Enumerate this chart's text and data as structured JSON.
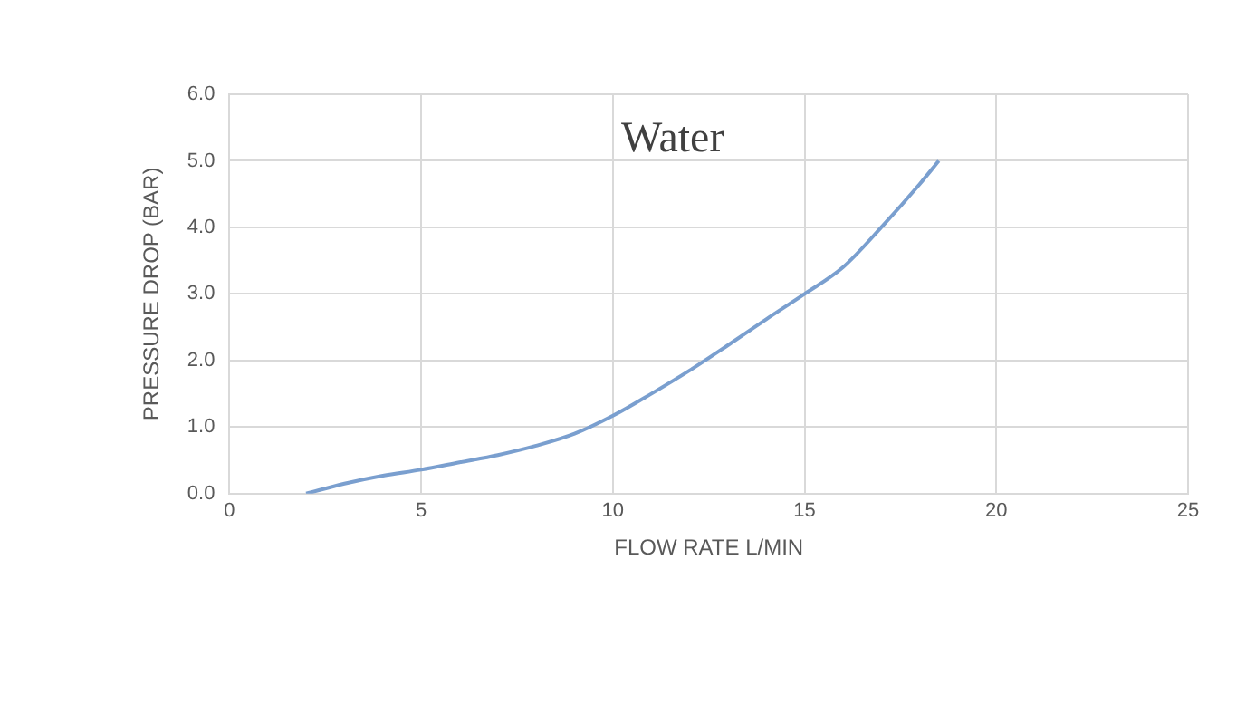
{
  "chart_data": {
    "type": "line",
    "title": "Water",
    "xlabel": "FLOW RATE L/MIN",
    "ylabel": "PRESSURE DROP (BAR)",
    "x": [
      2,
      3,
      4,
      5,
      6,
      7,
      8,
      9,
      10,
      11,
      12,
      13,
      14,
      15,
      16,
      17,
      18,
      18.5
    ],
    "series": [
      {
        "color": "#7a9fcf",
        "values": [
          0,
          0.15,
          0.27,
          0.36,
          0.47,
          0.58,
          0.72,
          0.9,
          1.17,
          1.5,
          1.85,
          2.23,
          2.62,
          3.0,
          3.4,
          4.0,
          4.65,
          5.0
        ]
      }
    ],
    "xlim": [
      0,
      25
    ],
    "xticks": [
      0,
      5,
      10,
      15,
      20,
      25
    ],
    "ylim": [
      0,
      6
    ],
    "yticks": [
      {
        "value": 0,
        "label": "0.0"
      },
      {
        "value": 1,
        "label": "1.0"
      },
      {
        "value": 2,
        "label": "2.0"
      },
      {
        "value": 3,
        "label": "3.0"
      },
      {
        "value": 4,
        "label": "4.0"
      },
      {
        "value": 5,
        "label": "5.0"
      },
      {
        "value": 6,
        "label": "6.0"
      }
    ],
    "grid": true,
    "legend": false,
    "marker": "none",
    "line_style": "solid"
  }
}
